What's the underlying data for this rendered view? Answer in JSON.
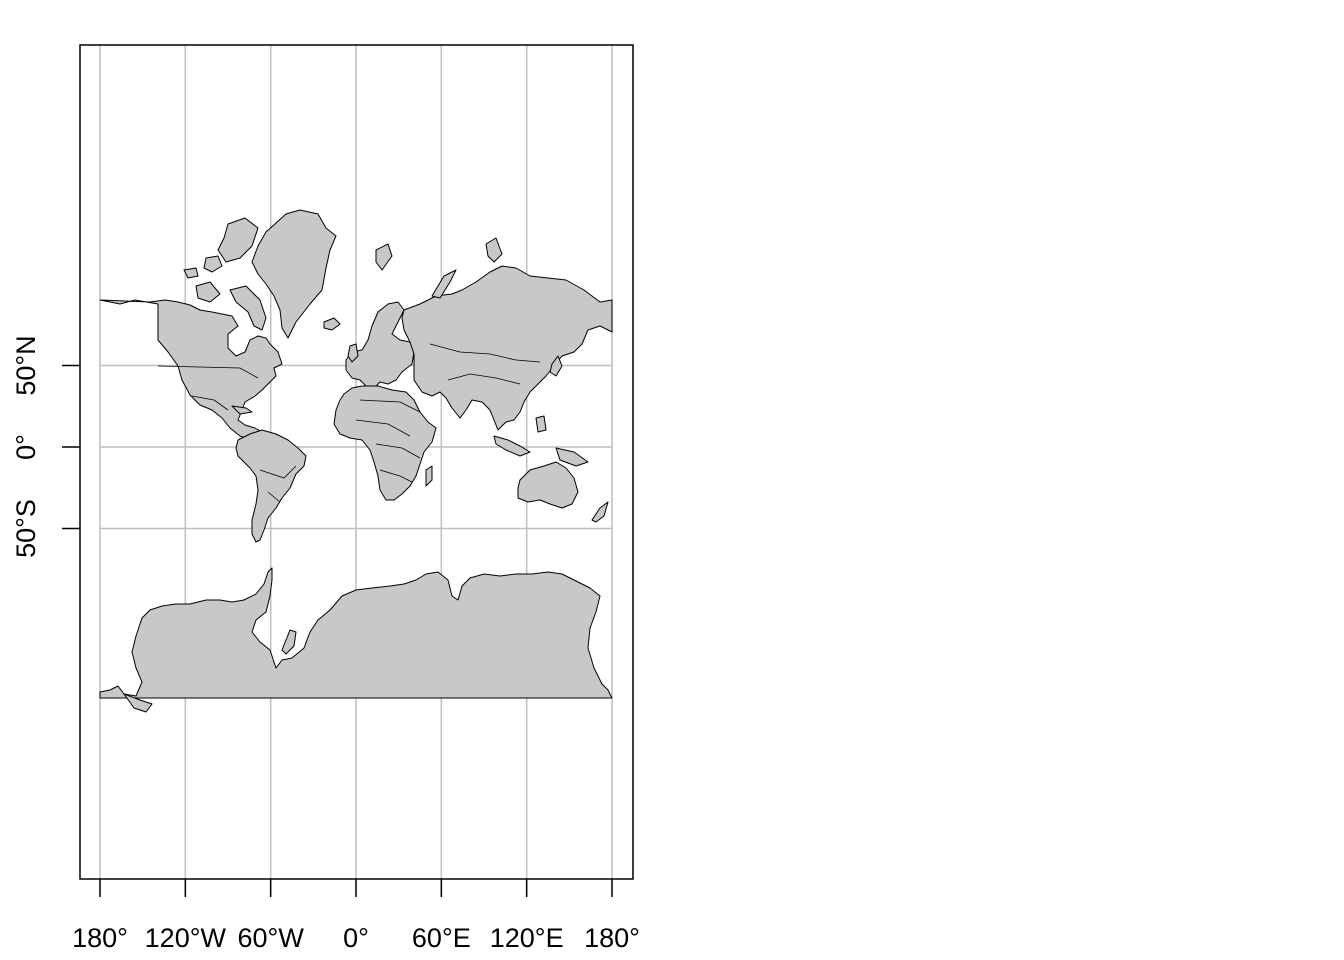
{
  "map": {
    "projection": "mercator",
    "graticule": true,
    "graticule_color": "#bebebe",
    "land_color": "#c8c8c8",
    "outline_color": "#000000",
    "background_color": "#ffffff",
    "x_axis": {
      "ticks": [
        {
          "value": -180,
          "label": "180°"
        },
        {
          "value": -120,
          "label": "120°W"
        },
        {
          "value": -60,
          "label": "60°W"
        },
        {
          "value": 0,
          "label": "0°"
        },
        {
          "value": 60,
          "label": "60°E"
        },
        {
          "value": 120,
          "label": "120°E"
        },
        {
          "value": 180,
          "label": "180°"
        }
      ]
    },
    "y_axis": {
      "ticks": [
        {
          "value": 50,
          "label": "50°N"
        },
        {
          "value": 0,
          "label": "0°"
        },
        {
          "value": -50,
          "label": "50°S"
        }
      ]
    }
  }
}
